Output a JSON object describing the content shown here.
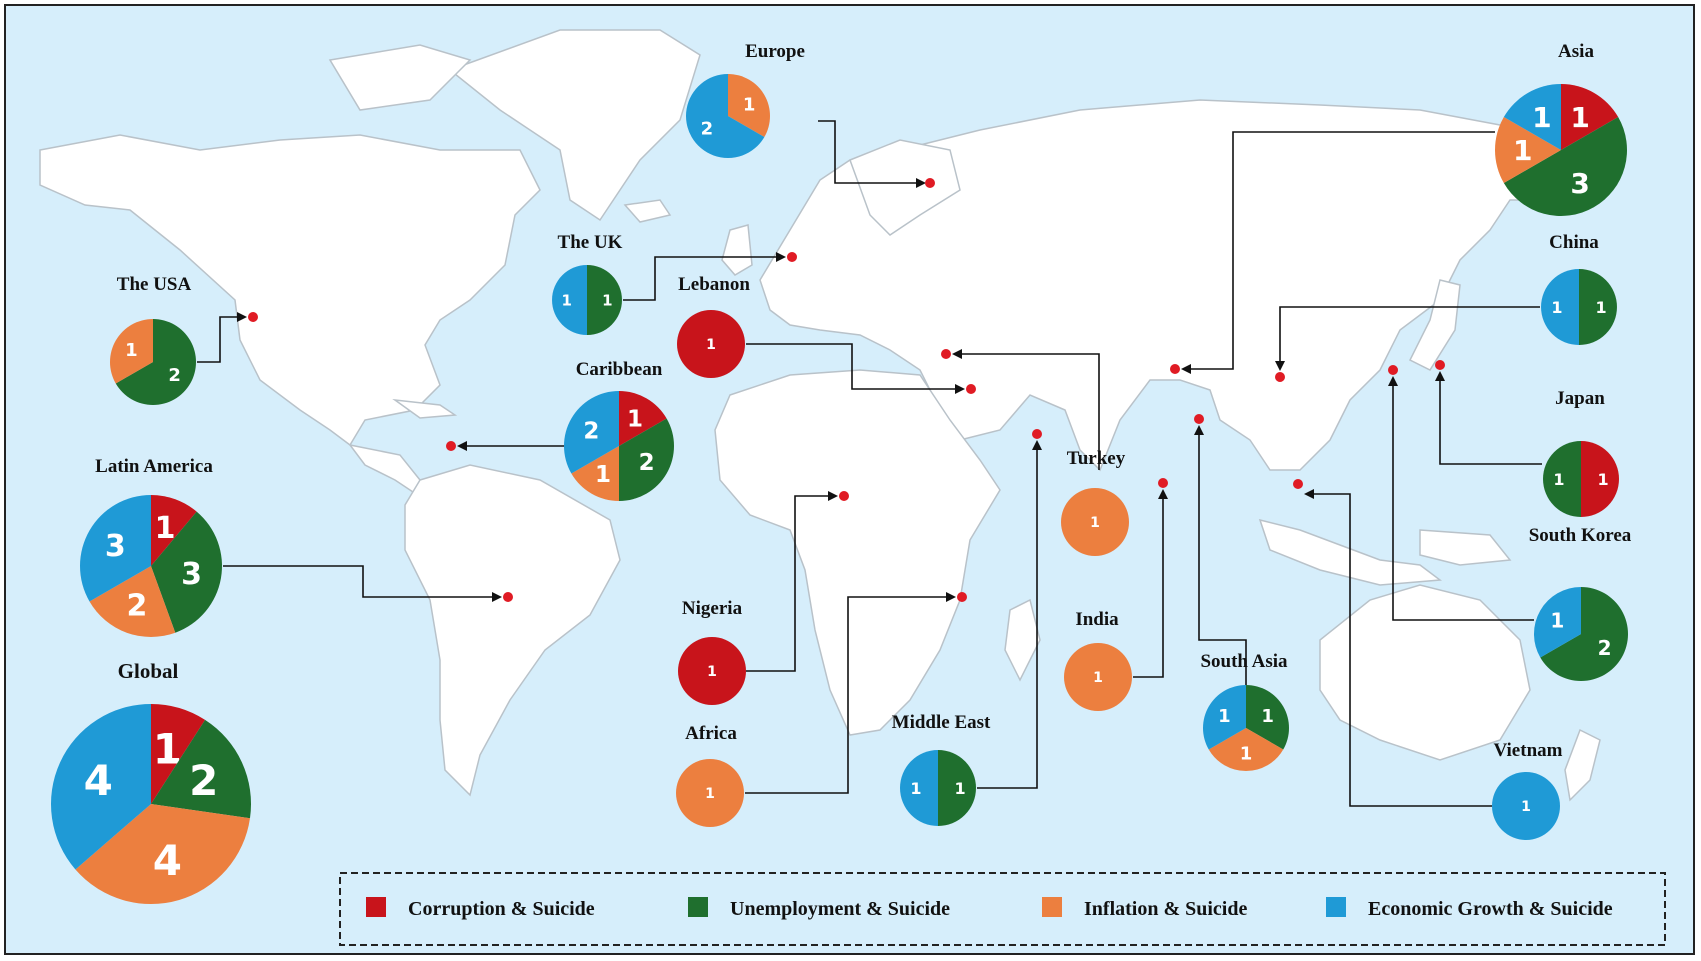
{
  "colors": {
    "ocean": "#d6eefb",
    "land": "#ffffff",
    "border": "#b9c2c9",
    "marker": "#e01b24",
    "connector": "#111111"
  },
  "legend": [
    {
      "label": "Corruption & Suicide",
      "color": "#c8141b"
    },
    {
      "label": "Unemployment & Suicide",
      "color": "#1f6f2e"
    },
    {
      "label": "Inflation & Suicide",
      "color": "#ec7f3f"
    },
    {
      "label": "Economic Growth & Suicide",
      "color": "#1f9ad6"
    }
  ],
  "regions": [
    {
      "name": "Europe",
      "counts": {
        "corruption": 0,
        "unemployment": 0,
        "inflation": 1,
        "economic_growth": 2
      }
    },
    {
      "name": "Asia",
      "counts": {
        "corruption": 1,
        "unemployment": 3,
        "inflation": 1,
        "economic_growth": 1
      }
    },
    {
      "name": "The UK",
      "counts": {
        "corruption": 0,
        "unemployment": 1,
        "inflation": 0,
        "economic_growth": 1
      }
    },
    {
      "name": "The USA",
      "counts": {
        "corruption": 0,
        "unemployment": 2,
        "inflation": 1,
        "economic_growth": 0
      }
    },
    {
      "name": "Lebanon",
      "counts": {
        "corruption": 1,
        "unemployment": 0,
        "inflation": 0,
        "economic_growth": 0
      }
    },
    {
      "name": "Caribbean",
      "counts": {
        "corruption": 1,
        "unemployment": 2,
        "inflation": 1,
        "economic_growth": 2
      }
    },
    {
      "name": "China",
      "counts": {
        "corruption": 0,
        "unemployment": 1,
        "inflation": 0,
        "economic_growth": 1
      }
    },
    {
      "name": "Japan",
      "counts": {
        "corruption": 1,
        "unemployment": 1,
        "inflation": 0,
        "economic_growth": 0
      }
    },
    {
      "name": "Latin America",
      "counts": {
        "corruption": 1,
        "unemployment": 3,
        "inflation": 2,
        "economic_growth": 3
      }
    },
    {
      "name": "Turkey",
      "counts": {
        "corruption": 0,
        "unemployment": 0,
        "inflation": 1,
        "economic_growth": 0
      }
    },
    {
      "name": "South Korea",
      "counts": {
        "corruption": 0,
        "unemployment": 2,
        "inflation": 0,
        "economic_growth": 1
      }
    },
    {
      "name": "Global",
      "counts": {
        "corruption": 1,
        "unemployment": 2,
        "inflation": 4,
        "economic_growth": 4
      }
    },
    {
      "name": "Nigeria",
      "counts": {
        "corruption": 1,
        "unemployment": 0,
        "inflation": 0,
        "economic_growth": 0
      }
    },
    {
      "name": "India",
      "counts": {
        "corruption": 0,
        "unemployment": 0,
        "inflation": 1,
        "economic_growth": 0
      }
    },
    {
      "name": "South Asia",
      "counts": {
        "corruption": 0,
        "unemployment": 1,
        "inflation": 1,
        "economic_growth": 1
      }
    },
    {
      "name": "Africa",
      "counts": {
        "corruption": 0,
        "unemployment": 0,
        "inflation": 1,
        "economic_growth": 0
      }
    },
    {
      "name": "Middle East",
      "counts": {
        "corruption": 0,
        "unemployment": 1,
        "inflation": 0,
        "economic_growth": 1
      }
    },
    {
      "name": "Vietnam",
      "counts": {
        "corruption": 0,
        "unemployment": 0,
        "inflation": 0,
        "economic_growth": 1
      }
    }
  ]
}
